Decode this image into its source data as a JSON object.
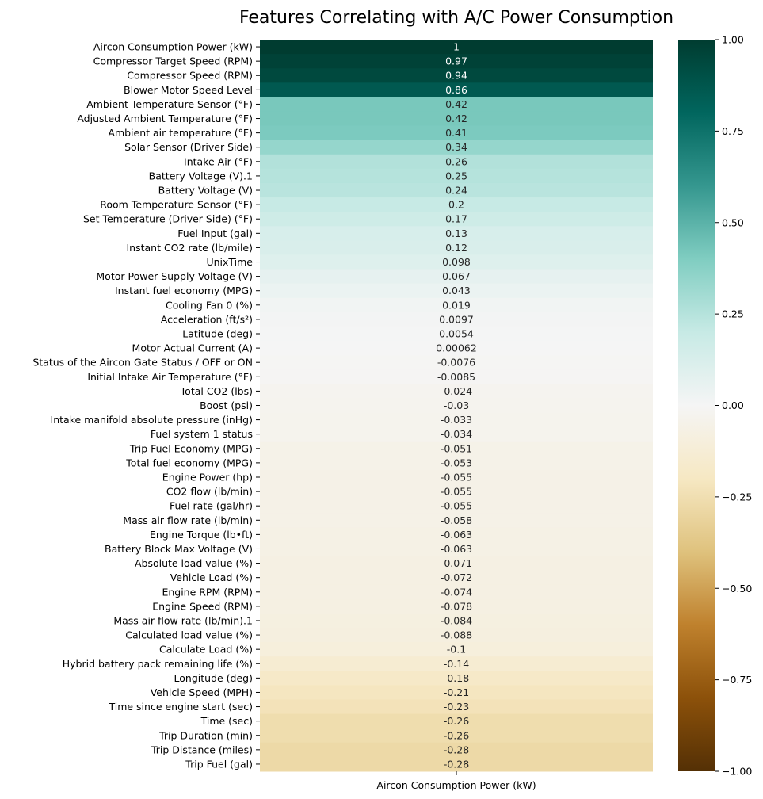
{
  "chart_data": {
    "type": "heatmap",
    "title": "Features Correlating with A/C Power Consumption",
    "column": "Aircon Consumption Power (kW)",
    "colormap": "BrBG",
    "vmin": -1.0,
    "vmax": 1.0,
    "colorbar_ticks": [
      "1.00",
      "0.75",
      "0.50",
      "0.25",
      "0.00",
      "−0.25",
      "−0.50",
      "−0.75",
      "−1.00"
    ],
    "colorbar_tick_values": [
      1.0,
      0.75,
      0.5,
      0.25,
      0.0,
      -0.25,
      -0.5,
      -0.75,
      -1.0
    ],
    "rows": [
      {
        "label": "Aircon Consumption Power (kW)",
        "value": 1,
        "text": "1"
      },
      {
        "label": "Compressor Target Speed (RPM)",
        "value": 0.97,
        "text": "0.97"
      },
      {
        "label": "Compressor Speed (RPM)",
        "value": 0.94,
        "text": "0.94"
      },
      {
        "label": "Blower Motor Speed Level",
        "value": 0.86,
        "text": "0.86"
      },
      {
        "label": "Ambient Temperature Sensor (°F)",
        "value": 0.42,
        "text": "0.42"
      },
      {
        "label": "Adjusted Ambient Temperature (°F)",
        "value": 0.42,
        "text": "0.42"
      },
      {
        "label": "Ambient air temperature (°F)",
        "value": 0.41,
        "text": "0.41"
      },
      {
        "label": "Solar Sensor (Driver Side)",
        "value": 0.34,
        "text": "0.34"
      },
      {
        "label": "Intake Air (°F)",
        "value": 0.26,
        "text": "0.26"
      },
      {
        "label": "Battery Voltage (V).1",
        "value": 0.25,
        "text": "0.25"
      },
      {
        "label": "Battery Voltage (V)",
        "value": 0.24,
        "text": "0.24"
      },
      {
        "label": "Room Temperature Sensor (°F)",
        "value": 0.2,
        "text": "0.2"
      },
      {
        "label": "Set Temperature (Driver Side) (°F)",
        "value": 0.17,
        "text": "0.17"
      },
      {
        "label": "Fuel Input (gal)",
        "value": 0.13,
        "text": "0.13"
      },
      {
        "label": "Instant CO2 rate (lb/mile)",
        "value": 0.12,
        "text": "0.12"
      },
      {
        "label": "UnixTime",
        "value": 0.098,
        "text": "0.098"
      },
      {
        "label": "Motor Power Supply Voltage (V)",
        "value": 0.067,
        "text": "0.067"
      },
      {
        "label": "Instant fuel economy (MPG)",
        "value": 0.043,
        "text": "0.043"
      },
      {
        "label": "Cooling Fan 0 (%)",
        "value": 0.019,
        "text": "0.019"
      },
      {
        "label": "Acceleration (ft/s²)",
        "value": 0.0097,
        "text": "0.0097"
      },
      {
        "label": "Latitude (deg)",
        "value": 0.0054,
        "text": "0.0054"
      },
      {
        "label": "Motor Actual Current (A)",
        "value": 0.00062,
        "text": "0.00062"
      },
      {
        "label": "Status of the Aircon Gate Status / OFF or ON",
        "value": -0.0076,
        "text": "-0.0076"
      },
      {
        "label": "Initial Intake Air Temperature (°F)",
        "value": -0.0085,
        "text": "-0.0085"
      },
      {
        "label": "Total CO2 (lbs)",
        "value": -0.024,
        "text": "-0.024"
      },
      {
        "label": "Boost (psi)",
        "value": -0.03,
        "text": "-0.03"
      },
      {
        "label": "Intake manifold absolute pressure (inHg)",
        "value": -0.033,
        "text": "-0.033"
      },
      {
        "label": "Fuel system 1 status",
        "value": -0.034,
        "text": "-0.034"
      },
      {
        "label": "Trip Fuel Economy (MPG)",
        "value": -0.051,
        "text": "-0.051"
      },
      {
        "label": "Total fuel economy (MPG)",
        "value": -0.053,
        "text": "-0.053"
      },
      {
        "label": "Engine Power (hp)",
        "value": -0.055,
        "text": "-0.055"
      },
      {
        "label": "CO2 flow (lb/min)",
        "value": -0.055,
        "text": "-0.055"
      },
      {
        "label": "Fuel rate (gal/hr)",
        "value": -0.055,
        "text": "-0.055"
      },
      {
        "label": "Mass air flow rate (lb/min)",
        "value": -0.058,
        "text": "-0.058"
      },
      {
        "label": "Engine Torque (lb•ft)",
        "value": -0.063,
        "text": "-0.063"
      },
      {
        "label": "Battery Block Max Voltage (V)",
        "value": -0.063,
        "text": "-0.063"
      },
      {
        "label": "Absolute load value (%)",
        "value": -0.071,
        "text": "-0.071"
      },
      {
        "label": "Vehicle Load (%)",
        "value": -0.072,
        "text": "-0.072"
      },
      {
        "label": "Engine RPM (RPM)",
        "value": -0.074,
        "text": "-0.074"
      },
      {
        "label": "Engine Speed (RPM)",
        "value": -0.078,
        "text": "-0.078"
      },
      {
        "label": "Mass air flow rate (lb/min).1",
        "value": -0.084,
        "text": "-0.084"
      },
      {
        "label": "Calculated load value (%)",
        "value": -0.088,
        "text": "-0.088"
      },
      {
        "label": "Calculate Load (%)",
        "value": -0.1,
        "text": "-0.1"
      },
      {
        "label": "Hybrid battery pack remaining life (%)",
        "value": -0.14,
        "text": "-0.14"
      },
      {
        "label": "Longitude (deg)",
        "value": -0.18,
        "text": "-0.18"
      },
      {
        "label": "Vehicle Speed (MPH)",
        "value": -0.21,
        "text": "-0.21"
      },
      {
        "label": "Time since engine start (sec)",
        "value": -0.23,
        "text": "-0.23"
      },
      {
        "label": "Time (sec)",
        "value": -0.26,
        "text": "-0.26"
      },
      {
        "label": "Trip Duration (min)",
        "value": -0.26,
        "text": "-0.26"
      },
      {
        "label": "Trip Distance (miles)",
        "value": -0.28,
        "text": "-0.28"
      },
      {
        "label": "Trip Fuel (gal)",
        "value": -0.28,
        "text": "-0.28"
      }
    ]
  }
}
